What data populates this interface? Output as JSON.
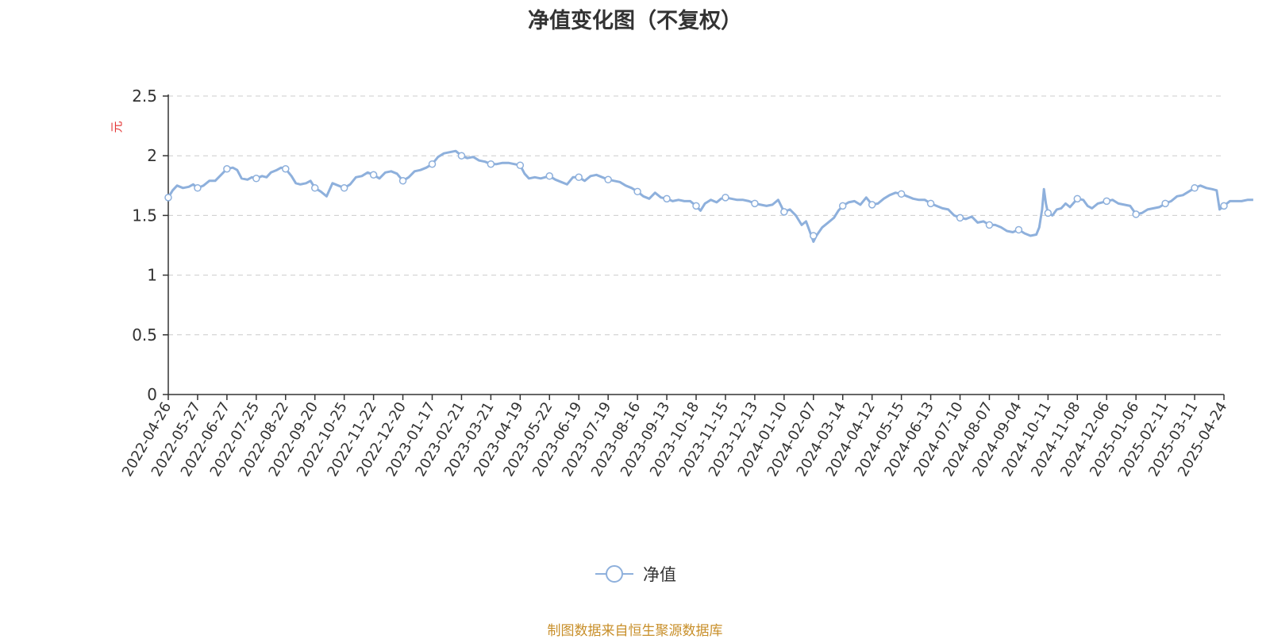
{
  "chart_data": {
    "type": "line",
    "title": "净值变化图（不复权）",
    "ylabel": "元",
    "ylim": [
      0,
      2.5
    ],
    "yticks": [
      "0",
      "0.5",
      "1",
      "1.5",
      "2",
      "2.5"
    ],
    "ytick_values": [
      0,
      0.5,
      1,
      1.5,
      2,
      2.5
    ],
    "grid": true,
    "legend_position": "bottom-center",
    "x": [
      "2022-04-26",
      "2022-05-27",
      "2022-06-27",
      "2022-07-25",
      "2022-08-22",
      "2022-09-20",
      "2022-10-25",
      "2022-11-22",
      "2022-12-20",
      "2023-01-17",
      "2023-02-21",
      "2023-03-21",
      "2023-04-19",
      "2023-05-22",
      "2023-06-19",
      "2023-07-19",
      "2023-08-16",
      "2023-09-13",
      "2023-10-18",
      "2023-11-15",
      "2023-12-13",
      "2024-01-10",
      "2024-02-07",
      "2024-03-14",
      "2024-04-12",
      "2024-05-15",
      "2024-06-13",
      "2024-07-10",
      "2024-08-07",
      "2024-09-04",
      "2024-10-11",
      "2024-11-08",
      "2024-12-06",
      "2025-01-06",
      "2025-02-11",
      "2025-03-11",
      "2025-04-24"
    ],
    "series": [
      {
        "name": "净值",
        "color": "#8eb0dc",
        "values": [
          1.65,
          1.73,
          1.89,
          1.81,
          1.89,
          1.73,
          1.73,
          1.84,
          1.79,
          1.93,
          2.0,
          1.93,
          1.92,
          1.83,
          1.82,
          1.8,
          1.7,
          1.64,
          1.58,
          1.65,
          1.6,
          1.53,
          1.33,
          1.58,
          1.59,
          1.68,
          1.6,
          1.48,
          1.42,
          1.38,
          1.52,
          1.64,
          1.62,
          1.51,
          1.6,
          1.73,
          1.58
        ],
        "detail": [
          [
            0,
            1.65
          ],
          [
            0.15,
            1.71
          ],
          [
            0.3,
            1.75
          ],
          [
            0.5,
            1.73
          ],
          [
            0.7,
            1.74
          ],
          [
            0.85,
            1.76
          ],
          [
            1,
            1.73
          ],
          [
            1.2,
            1.75
          ],
          [
            1.4,
            1.79
          ],
          [
            1.6,
            1.79
          ],
          [
            1.8,
            1.84
          ],
          [
            2,
            1.89
          ],
          [
            2.2,
            1.9
          ],
          [
            2.35,
            1.88
          ],
          [
            2.5,
            1.81
          ],
          [
            2.7,
            1.8
          ],
          [
            2.85,
            1.82
          ],
          [
            3,
            1.81
          ],
          [
            3.2,
            1.83
          ],
          [
            3.35,
            1.82
          ],
          [
            3.5,
            1.86
          ],
          [
            3.7,
            1.88
          ],
          [
            3.85,
            1.9
          ],
          [
            4,
            1.89
          ],
          [
            4.2,
            1.83
          ],
          [
            4.35,
            1.77
          ],
          [
            4.5,
            1.76
          ],
          [
            4.7,
            1.77
          ],
          [
            4.85,
            1.79
          ],
          [
            5,
            1.73
          ],
          [
            5.2,
            1.7
          ],
          [
            5.4,
            1.66
          ],
          [
            5.6,
            1.77
          ],
          [
            5.8,
            1.75
          ],
          [
            6,
            1.73
          ],
          [
            6.2,
            1.76
          ],
          [
            6.4,
            1.82
          ],
          [
            6.6,
            1.83
          ],
          [
            6.8,
            1.86
          ],
          [
            7,
            1.84
          ],
          [
            7.2,
            1.81
          ],
          [
            7.4,
            1.86
          ],
          [
            7.6,
            1.87
          ],
          [
            7.8,
            1.85
          ],
          [
            8,
            1.79
          ],
          [
            8.2,
            1.82
          ],
          [
            8.4,
            1.87
          ],
          [
            8.6,
            1.88
          ],
          [
            8.8,
            1.9
          ],
          [
            9,
            1.93
          ],
          [
            9.2,
            1.99
          ],
          [
            9.4,
            2.02
          ],
          [
            9.6,
            2.03
          ],
          [
            9.8,
            2.04
          ],
          [
            10,
            2.0
          ],
          [
            10.2,
            1.98
          ],
          [
            10.4,
            1.99
          ],
          [
            10.6,
            1.96
          ],
          [
            10.8,
            1.95
          ],
          [
            11,
            1.93
          ],
          [
            11.2,
            1.93
          ],
          [
            11.4,
            1.94
          ],
          [
            11.6,
            1.94
          ],
          [
            11.8,
            1.93
          ],
          [
            12,
            1.92
          ],
          [
            12.15,
            1.85
          ],
          [
            12.3,
            1.81
          ],
          [
            12.5,
            1.82
          ],
          [
            12.7,
            1.81
          ],
          [
            12.85,
            1.82
          ],
          [
            13,
            1.83
          ],
          [
            13.2,
            1.8
          ],
          [
            13.4,
            1.78
          ],
          [
            13.6,
            1.76
          ],
          [
            13.8,
            1.82
          ],
          [
            14,
            1.82
          ],
          [
            14.2,
            1.79
          ],
          [
            14.4,
            1.83
          ],
          [
            14.6,
            1.84
          ],
          [
            14.8,
            1.82
          ],
          [
            15,
            1.8
          ],
          [
            15.2,
            1.79
          ],
          [
            15.4,
            1.78
          ],
          [
            15.6,
            1.75
          ],
          [
            15.8,
            1.73
          ],
          [
            16,
            1.7
          ],
          [
            16.2,
            1.66
          ],
          [
            16.4,
            1.64
          ],
          [
            16.6,
            1.69
          ],
          [
            16.8,
            1.65
          ],
          [
            17,
            1.64
          ],
          [
            17.2,
            1.62
          ],
          [
            17.4,
            1.63
          ],
          [
            17.6,
            1.62
          ],
          [
            17.8,
            1.62
          ],
          [
            18,
            1.58
          ],
          [
            18.15,
            1.54
          ],
          [
            18.3,
            1.6
          ],
          [
            18.5,
            1.63
          ],
          [
            18.7,
            1.61
          ],
          [
            18.85,
            1.64
          ],
          [
            19,
            1.65
          ],
          [
            19.2,
            1.64
          ],
          [
            19.4,
            1.63
          ],
          [
            19.6,
            1.63
          ],
          [
            19.8,
            1.62
          ],
          [
            20,
            1.6
          ],
          [
            20.2,
            1.59
          ],
          [
            20.4,
            1.58
          ],
          [
            20.6,
            1.59
          ],
          [
            20.8,
            1.63
          ],
          [
            21,
            1.53
          ],
          [
            21.2,
            1.55
          ],
          [
            21.4,
            1.5
          ],
          [
            21.6,
            1.42
          ],
          [
            21.75,
            1.45
          ],
          [
            21.9,
            1.35
          ],
          [
            22,
            1.28
          ],
          [
            22.1,
            1.33
          ],
          [
            22.3,
            1.4
          ],
          [
            22.5,
            1.44
          ],
          [
            22.7,
            1.48
          ],
          [
            22.85,
            1.54
          ],
          [
            23,
            1.58
          ],
          [
            23.2,
            1.61
          ],
          [
            23.4,
            1.62
          ],
          [
            23.6,
            1.59
          ],
          [
            23.8,
            1.65
          ],
          [
            24,
            1.59
          ],
          [
            24.2,
            1.6
          ],
          [
            24.4,
            1.64
          ],
          [
            24.6,
            1.67
          ],
          [
            24.8,
            1.69
          ],
          [
            25,
            1.68
          ],
          [
            25.2,
            1.66
          ],
          [
            25.4,
            1.64
          ],
          [
            25.6,
            1.63
          ],
          [
            25.8,
            1.63
          ],
          [
            26,
            1.6
          ],
          [
            26.2,
            1.58
          ],
          [
            26.4,
            1.56
          ],
          [
            26.6,
            1.55
          ],
          [
            26.8,
            1.5
          ],
          [
            27,
            1.48
          ],
          [
            27.2,
            1.47
          ],
          [
            27.4,
            1.49
          ],
          [
            27.6,
            1.44
          ],
          [
            27.8,
            1.45
          ],
          [
            28,
            1.42
          ],
          [
            28.2,
            1.42
          ],
          [
            28.4,
            1.4
          ],
          [
            28.6,
            1.37
          ],
          [
            28.8,
            1.36
          ],
          [
            29,
            1.38
          ],
          [
            29.2,
            1.35
          ],
          [
            29.4,
            1.33
          ],
          [
            29.6,
            1.34
          ],
          [
            29.7,
            1.4
          ],
          [
            29.8,
            1.55
          ],
          [
            29.86,
            1.72
          ],
          [
            29.93,
            1.6
          ],
          [
            30,
            1.52
          ],
          [
            30.15,
            1.5
          ],
          [
            30.3,
            1.55
          ],
          [
            30.45,
            1.56
          ],
          [
            30.6,
            1.6
          ],
          [
            30.75,
            1.57
          ],
          [
            31,
            1.64
          ],
          [
            31.2,
            1.63
          ],
          [
            31.35,
            1.58
          ],
          [
            31.5,
            1.56
          ],
          [
            31.7,
            1.6
          ],
          [
            31.85,
            1.61
          ],
          [
            32,
            1.62
          ],
          [
            32.2,
            1.63
          ],
          [
            32.4,
            1.6
          ],
          [
            32.6,
            1.59
          ],
          [
            32.8,
            1.58
          ],
          [
            33,
            1.51
          ],
          [
            33.2,
            1.52
          ],
          [
            33.4,
            1.55
          ],
          [
            33.6,
            1.56
          ],
          [
            33.8,
            1.57
          ],
          [
            34,
            1.6
          ],
          [
            34.2,
            1.62
          ],
          [
            34.4,
            1.66
          ],
          [
            34.6,
            1.67
          ],
          [
            34.8,
            1.7
          ],
          [
            35,
            1.73
          ],
          [
            35.2,
            1.75
          ],
          [
            35.4,
            1.73
          ],
          [
            35.6,
            1.72
          ],
          [
            35.75,
            1.71
          ],
          [
            35.85,
            1.55
          ],
          [
            36,
            1.58
          ],
          [
            36.2,
            1.62
          ],
          [
            36.4,
            1.62
          ],
          [
            36.6,
            1.62
          ],
          [
            36.8,
            1.63
          ],
          [
            37,
            1.63
          ]
        ]
      }
    ]
  },
  "legend": {
    "label": "净值"
  },
  "source": "制图数据来自恒生聚源数据库"
}
